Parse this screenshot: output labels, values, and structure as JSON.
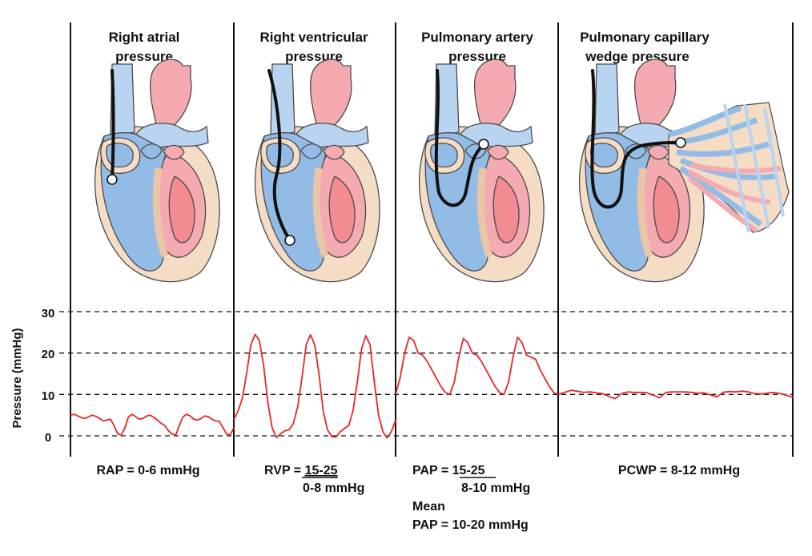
{
  "panels": [
    {
      "title_line1": "Right atrial",
      "title_line2": "pressure"
    },
    {
      "title_line1": "Right ventricular",
      "title_line2": "pressure"
    },
    {
      "title_line1": "Pulmonary artery",
      "title_line2": "pressure"
    },
    {
      "title_line1": "Pulmonary capillary",
      "title_line2": "wedge pressure"
    }
  ],
  "y_axis": {
    "label": "Pressure (mmHg)",
    "ticks": [
      "30",
      "20",
      "10",
      "0"
    ],
    "range": [
      0,
      30
    ]
  },
  "normals": {
    "rap": "RAP = 0-6 mmHg",
    "rvp_prefix": "RVP = ",
    "rvp_systolic": "15-25",
    "rvp_diastolic": "0-8 mmHg",
    "pap_prefix": "PAP = ",
    "pap_systolic": "15-25",
    "pap_diastolic": "8-10 mmHg",
    "mean_line1": "Mean",
    "mean_line2": "PAP = 10-20 mmHg",
    "pcwp": "PCWP = 8-12 mmHg"
  },
  "chart_data": {
    "type": "line",
    "y_range": [
      0,
      30
    ],
    "series": [
      {
        "values": [
          5,
          5.2,
          4.8,
          4.4,
          4.2,
          4.6,
          5.0,
          4.7,
          4.2,
          3.6,
          3.8,
          4.0,
          2.5,
          0.5,
          0.2,
          2.0,
          4.6,
          5.2,
          4.6,
          4.0,
          4.2,
          4.8,
          5.0,
          4.4,
          3.8,
          3.0,
          2.5,
          1.2,
          0.4,
          0.2,
          2.5,
          4.6,
          5.2,
          4.8,
          4.0,
          3.8,
          4.2,
          4.8,
          4.6,
          4.0,
          3.6,
          3.5,
          2.0,
          0.4,
          0.2,
          2.0
        ]
      },
      {
        "values": [
          4,
          6,
          9,
          15,
          22,
          24.5,
          23,
          17,
          8,
          2,
          -0.4,
          0.5,
          1.2,
          1.5,
          3,
          7,
          14,
          22,
          24.4,
          22,
          15,
          6,
          1.5,
          -0.2,
          -0.3,
          1,
          1.8,
          2.5,
          6,
          13,
          21,
          24.2,
          22,
          13,
          5,
          1,
          -0.5,
          1,
          3.8
        ]
      },
      {
        "values": [
          10,
          14,
          20,
          23.8,
          23,
          20,
          19.5,
          18,
          16,
          14,
          12,
          10.5,
          10,
          13,
          19,
          23.5,
          22.5,
          20,
          19.5,
          18,
          16,
          14,
          12,
          10.5,
          10,
          13,
          19,
          23.8,
          22.5,
          19.5,
          19,
          18.5,
          16,
          14,
          12,
          10.5,
          10
        ]
      },
      {
        "values": [
          10,
          10.5,
          11,
          10.8,
          10.5,
          10.6,
          10.4,
          10.2,
          9.5,
          9.0,
          10.2,
          10.6,
          10.5,
          10.5,
          10.4,
          9.8,
          9.2,
          10.5,
          10.6,
          10.6,
          10.6,
          10.5,
          10.3,
          10.4,
          9.9,
          9.4,
          10.5,
          10.7,
          10.6,
          10.8,
          10.6,
          10.2,
          10.1,
          10.3,
          10.5,
          10.2,
          9.8,
          9.3
        ]
      }
    ]
  },
  "colors": {
    "right_heart": "#92bbe6",
    "left_heart": "#f4aab0",
    "myocardium": "#f5dcc4",
    "trace": "#e8262a"
  }
}
